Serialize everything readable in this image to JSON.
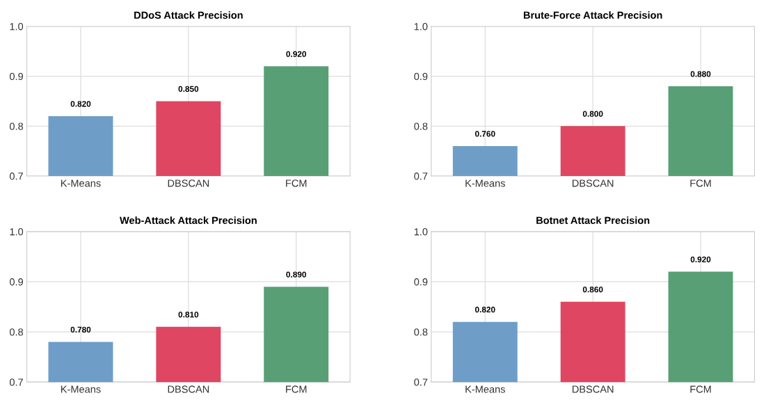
{
  "chart_data": [
    {
      "type": "bar",
      "title": "DDoS Attack Precision",
      "categories": [
        "K-Means",
        "DBSCAN",
        "FCM"
      ],
      "values": [
        0.82,
        0.85,
        0.92
      ],
      "value_labels": [
        "0.820",
        "0.850",
        "0.920"
      ],
      "colors": [
        "#6699c4",
        "#dc3c5a",
        "#4f9a6e"
      ],
      "ylim": [
        0.7,
        1.0
      ],
      "yticks": [
        {
          "value": 0.7,
          "label": "0.7"
        },
        {
          "value": 0.8,
          "label": "0.8"
        },
        {
          "value": 0.9,
          "label": "0.9"
        },
        {
          "value": 1.0,
          "label": "1.0"
        }
      ],
      "grid": true
    },
    {
      "type": "bar",
      "title": "Brute-Force Attack Precision",
      "categories": [
        "K-Means",
        "DBSCAN",
        "FCM"
      ],
      "values": [
        0.76,
        0.8,
        0.88
      ],
      "value_labels": [
        "0.760",
        "0.800",
        "0.880"
      ],
      "colors": [
        "#6699c4",
        "#dc3c5a",
        "#4f9a6e"
      ],
      "ylim": [
        0.7,
        1.0
      ],
      "yticks": [
        {
          "value": 0.7,
          "label": "0.7"
        },
        {
          "value": 0.8,
          "label": "0.8"
        },
        {
          "value": 0.9,
          "label": "0.9"
        },
        {
          "value": 1.0,
          "label": "1.0"
        }
      ],
      "grid": true
    },
    {
      "type": "bar",
      "title": "Web-Attack Attack Precision",
      "categories": [
        "K-Means",
        "DBSCAN",
        "FCM"
      ],
      "values": [
        0.78,
        0.81,
        0.89
      ],
      "value_labels": [
        "0.780",
        "0.810",
        "0.890"
      ],
      "colors": [
        "#6699c4",
        "#dc3c5a",
        "#4f9a6e"
      ],
      "ylim": [
        0.7,
        1.0
      ],
      "yticks": [
        {
          "value": 0.7,
          "label": "0.7"
        },
        {
          "value": 0.8,
          "label": "0.8"
        },
        {
          "value": 0.9,
          "label": "0.9"
        },
        {
          "value": 1.0,
          "label": "1.0"
        }
      ],
      "grid": true
    },
    {
      "type": "bar",
      "title": "Botnet Attack Precision",
      "categories": [
        "K-Means",
        "DBSCAN",
        "FCM"
      ],
      "values": [
        0.82,
        0.86,
        0.92
      ],
      "value_labels": [
        "0.820",
        "0.860",
        "0.920"
      ],
      "colors": [
        "#6699c4",
        "#dc3c5a",
        "#4f9a6e"
      ],
      "ylim": [
        0.7,
        1.0
      ],
      "yticks": [
        {
          "value": 0.7,
          "label": "0.7"
        },
        {
          "value": 0.8,
          "label": "0.8"
        },
        {
          "value": 0.9,
          "label": "0.9"
        },
        {
          "value": 1.0,
          "label": "1.0"
        }
      ],
      "grid": true
    }
  ]
}
